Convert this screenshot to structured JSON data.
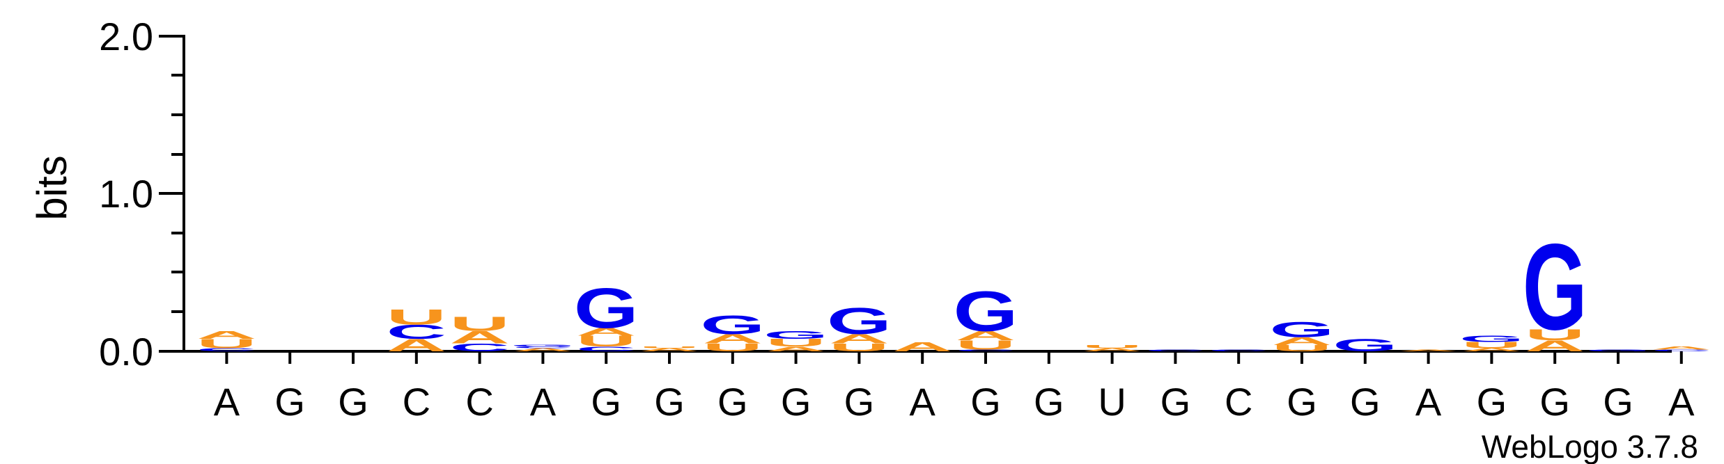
{
  "chart_data": {
    "type": "sequence-logo",
    "ylabel": "bits",
    "ylim": [
      0,
      2
    ],
    "y_ticks": [
      "0.0",
      "1.0",
      "2.0"
    ],
    "x_labels": [
      "A",
      "G",
      "G",
      "C",
      "C",
      "A",
      "G",
      "G",
      "G",
      "G",
      "G",
      "A",
      "G",
      "G",
      "U",
      "G",
      "C",
      "G",
      "G",
      "A",
      "G",
      "G",
      "G",
      "A"
    ],
    "credit": "WebLogo 3.7.8",
    "colors": {
      "A": "#f7941d",
      "U": "#f7941d",
      "G": "#0000ee",
      "C": "#0000ee",
      "axis": "#000000"
    },
    "stacks": [
      [
        [
          "C",
          0.02
        ],
        [
          "U",
          0.06
        ],
        [
          "A",
          0.05
        ]
      ],
      [],
      [],
      [
        [
          "A",
          0.08
        ],
        [
          "C",
          0.09
        ],
        [
          "U",
          0.1
        ]
      ],
      [
        [
          "C",
          0.05
        ],
        [
          "A",
          0.08
        ],
        [
          "U",
          0.09
        ]
      ],
      [
        [
          "A",
          0.02
        ],
        [
          "C",
          0.01
        ],
        [
          "G",
          0.01
        ]
      ],
      [
        [
          "C",
          0.03
        ],
        [
          "U",
          0.07
        ],
        [
          "A",
          0.05
        ],
        [
          "G",
          0.26
        ]
      ],
      [
        [
          "A",
          0.02
        ],
        [
          "U",
          0.01
        ]
      ],
      [
        [
          "U",
          0.05
        ],
        [
          "A",
          0.06
        ],
        [
          "G",
          0.12
        ]
      ],
      [
        [
          "A",
          0.03
        ],
        [
          "U",
          0.05
        ],
        [
          "G",
          0.05
        ]
      ],
      [
        [
          "U",
          0.05
        ],
        [
          "A",
          0.06
        ],
        [
          "G",
          0.17
        ]
      ],
      [
        [
          "A",
          0.06
        ]
      ],
      [
        [
          "C",
          0.01
        ],
        [
          "U",
          0.06
        ],
        [
          "A",
          0.06
        ],
        [
          "G",
          0.26
        ]
      ],
      [],
      [
        [
          "A",
          0.02
        ],
        [
          "U",
          0.02
        ]
      ],
      [
        [
          "C",
          0.01
        ]
      ],
      [
        [
          "C",
          0.01
        ]
      ],
      [
        [
          "U",
          0.04
        ],
        [
          "A",
          0.05
        ],
        [
          "G",
          0.1
        ]
      ],
      [
        [
          "G",
          0.08
        ]
      ],
      [
        [
          "A",
          0.01
        ]
      ],
      [
        [
          "A",
          0.02
        ],
        [
          "U",
          0.04
        ],
        [
          "G",
          0.04
        ]
      ],
      [
        [
          "A",
          0.07
        ],
        [
          "U",
          0.07
        ],
        [
          "G",
          0.56
        ]
      ],
      [
        [
          "G",
          0.01
        ]
      ],
      [
        [
          "C",
          0.01
        ],
        [
          "A",
          0.02
        ]
      ]
    ]
  }
}
